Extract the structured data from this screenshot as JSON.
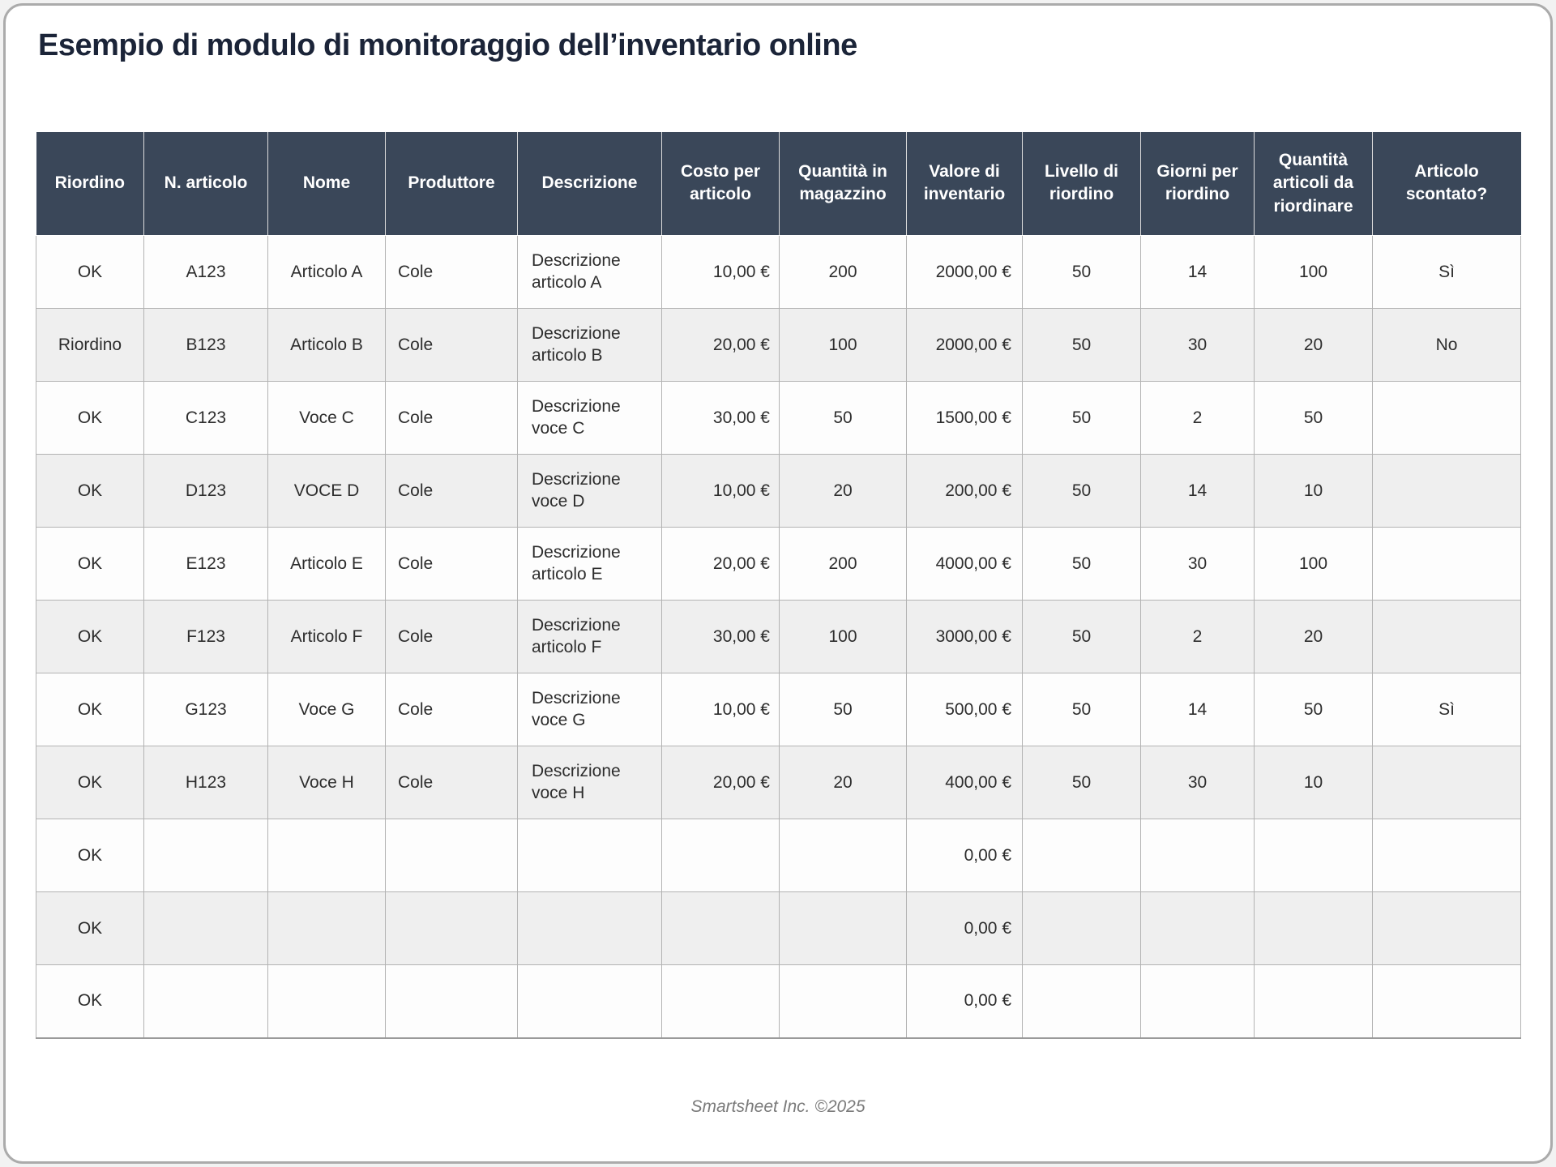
{
  "page": {
    "title": "Esempio di modulo di monitoraggio dell’inventario online",
    "footer": "Smartsheet Inc. ©2025"
  },
  "colors": {
    "header_bg": "#3a4759",
    "header_text": "#ffffff",
    "row_bg": "#fdfdfd",
    "row_alt_bg": "#efefef",
    "grid_border": "#b3b3b3",
    "title_text": "#1b2438",
    "body_text": "#2d2d2d",
    "footer_text": "#7a7a7a"
  },
  "table": {
    "columns": [
      {
        "key": "riordino",
        "label": "Riordino"
      },
      {
        "key": "n-articolo",
        "label": "N. articolo"
      },
      {
        "key": "nome",
        "label": "Nome"
      },
      {
        "key": "produttore",
        "label": "Produttore"
      },
      {
        "key": "descrizione",
        "label": "Descrizione"
      },
      {
        "key": "costo-per-articolo",
        "label": "Costo per articolo"
      },
      {
        "key": "quantita-in-magazzino",
        "label": "Quantità in magazzino"
      },
      {
        "key": "valore-di-inventario",
        "label": "Valore di inventario"
      },
      {
        "key": "livello-di-riordino",
        "label": "Livello di riordino"
      },
      {
        "key": "giorni-per-riordino",
        "label": "Giorni per riordino"
      },
      {
        "key": "quantita-articoli-da-riordinare",
        "label": "Quantità articoli da riordinare"
      },
      {
        "key": "articolo-scontato",
        "label": "Articolo scontato?"
      }
    ],
    "rows": [
      [
        "OK",
        "A123",
        "Articolo A",
        "Cole",
        "Descrizione articolo A",
        "10,00 €",
        "200",
        "2000,00 €",
        "50",
        "14",
        "100",
        "Sì"
      ],
      [
        "Riordino",
        "B123",
        "Articolo B",
        "Cole",
        "Descrizione articolo B",
        "20,00 €",
        "100",
        "2000,00 €",
        "50",
        "30",
        "20",
        "No"
      ],
      [
        "OK",
        "C123",
        "Voce C",
        "Cole",
        "Descrizione voce C",
        "30,00 €",
        "50",
        "1500,00 €",
        "50",
        "2",
        "50",
        ""
      ],
      [
        "OK",
        "D123",
        "VOCE D",
        "Cole",
        "Descrizione voce D",
        "10,00 €",
        "20",
        "200,00 €",
        "50",
        "14",
        "10",
        ""
      ],
      [
        "OK",
        "E123",
        "Articolo E",
        "Cole",
        "Descrizione articolo E",
        "20,00 €",
        "200",
        "4000,00 €",
        "50",
        "30",
        "100",
        ""
      ],
      [
        "OK",
        "F123",
        "Articolo F",
        "Cole",
        "Descrizione articolo F",
        "30,00 €",
        "100",
        "3000,00 €",
        "50",
        "2",
        "20",
        ""
      ],
      [
        "OK",
        "G123",
        "Voce G",
        "Cole",
        "Descrizione voce G",
        "10,00 €",
        "50",
        "500,00 €",
        "50",
        "14",
        "50",
        "Sì"
      ],
      [
        "OK",
        "H123",
        "Voce H",
        "Cole",
        "Descrizione voce H",
        "20,00 €",
        "20",
        "400,00 €",
        "50",
        "30",
        "10",
        ""
      ],
      [
        "OK",
        "",
        "",
        "",
        "",
        "",
        "",
        "0,00 €",
        "",
        "",
        "",
        ""
      ],
      [
        "OK",
        "",
        "",
        "",
        "",
        "",
        "",
        "0,00 €",
        "",
        "",
        "",
        ""
      ],
      [
        "OK",
        "",
        "",
        "",
        "",
        "",
        "",
        "0,00 €",
        "",
        "",
        "",
        ""
      ]
    ]
  }
}
